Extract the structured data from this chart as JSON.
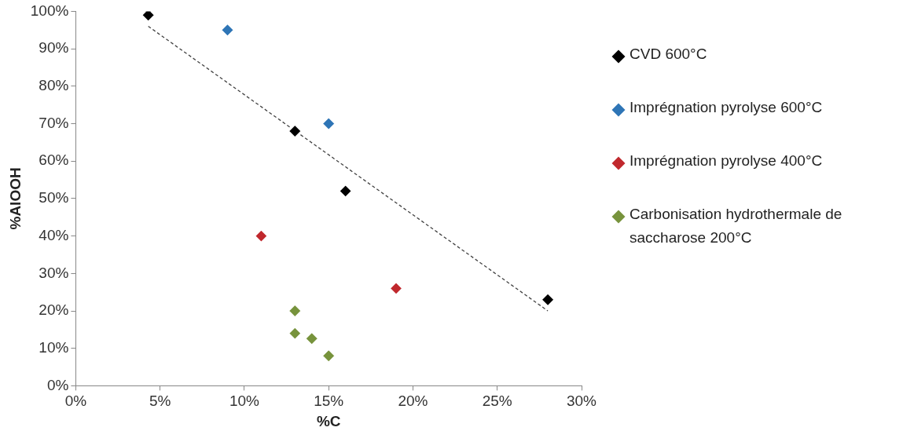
{
  "chart_data": {
    "type": "scatter",
    "xlabel": "%C",
    "ylabel": "%AlOOH",
    "marker": "diamond",
    "grid": false,
    "legend": "right",
    "xlim": [
      0,
      30
    ],
    "xticks": [
      {
        "value": 0,
        "label": "0%"
      },
      {
        "value": 5,
        "label": "5%"
      },
      {
        "value": 10,
        "label": "10%"
      },
      {
        "value": 15,
        "label": "15%"
      },
      {
        "value": 20,
        "label": "20%"
      },
      {
        "value": 25,
        "label": "25%"
      },
      {
        "value": 30,
        "label": "30%"
      }
    ],
    "ylim": [
      0,
      100
    ],
    "yticks": [
      {
        "value": 0,
        "label": "0%"
      },
      {
        "value": 10,
        "label": "10%"
      },
      {
        "value": 20,
        "label": "20%"
      },
      {
        "value": 30,
        "label": "30%"
      },
      {
        "value": 40,
        "label": "40%"
      },
      {
        "value": 50,
        "label": "50%"
      },
      {
        "value": 60,
        "label": "60%"
      },
      {
        "value": 70,
        "label": "70%"
      },
      {
        "value": 80,
        "label": "80%"
      },
      {
        "value": 90,
        "label": "90%"
      },
      {
        "value": 100,
        "label": "100%"
      }
    ],
    "series": [
      {
        "name": "CVD 600°C",
        "color": "#000000",
        "x": [
          4.3,
          13,
          16,
          28
        ],
        "values": [
          99,
          68,
          52,
          23
        ]
      },
      {
        "name": "Imprégnation pyrolyse 600°C",
        "color": "#2e75b6",
        "x": [
          9,
          15
        ],
        "values": [
          95,
          70
        ]
      },
      {
        "name": "Imprégnation pyrolyse 400°C",
        "color": "#c0282d",
        "x": [
          11,
          19
        ],
        "values": [
          40,
          26
        ]
      },
      {
        "name": "Carbonisation hydrothermale de saccharose 200°C",
        "color": "#77933c",
        "x": [
          13,
          13,
          14,
          15
        ],
        "values": [
          20,
          14,
          12.6,
          8
        ]
      },
      {
        "type": "line",
        "color": "#404040",
        "line_style": "dashed",
        "marker": "none",
        "x": [
          4.3,
          28
        ],
        "values": [
          96,
          20
        ]
      }
    ]
  }
}
